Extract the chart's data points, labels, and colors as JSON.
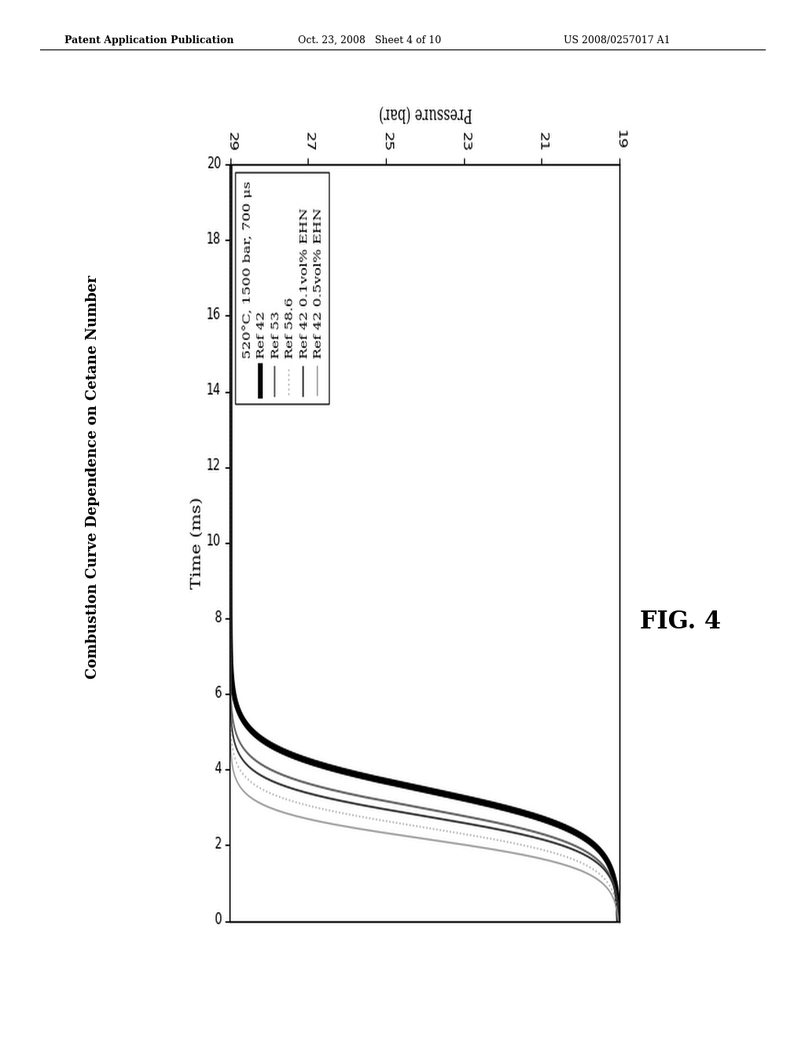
{
  "header_left": "Patent Application Publication",
  "header_center": "Oct. 23, 2008   Sheet 4 of 10",
  "header_right": "US 2008/0257017 A1",
  "rotated_title": "Combustion Curve Dependence on Cetane Number",
  "fig_label": "FIG. 4",
  "legend_condition": "520°C, 1500 bar, 700 μs",
  "curves": [
    {
      "label": "Ref 42",
      "t_mid": 3.5,
      "slope": 0.55,
      "color": "#000000",
      "lw": 3.8,
      "ls": "solid"
    },
    {
      "label": "Ref 53",
      "t_mid": 3.0,
      "slope": 0.48,
      "color": "#666666",
      "lw": 1.3,
      "ls": "solid"
    },
    {
      "label": "Ref 58.6",
      "t_mid": 2.5,
      "slope": 0.42,
      "color": "#aaaaaa",
      "lw": 1.0,
      "ls": "dotted"
    },
    {
      "label": "Ref 42 0.1vol% EHN",
      "t_mid": 2.8,
      "slope": 0.44,
      "color": "#333333",
      "lw": 1.2,
      "ls": "solid"
    },
    {
      "label": "Ref 42 0.5vol% EHN",
      "t_mid": 2.2,
      "slope": 0.38,
      "color": "#999999",
      "lw": 1.0,
      "ls": "solid"
    }
  ],
  "pressure_label": "Pressure (bar)",
  "time_label": "Time (ms)",
  "p_min": 19,
  "p_max": 29,
  "t_min": 0,
  "t_max": 20,
  "p_ticks": [
    19,
    21,
    23,
    25,
    27,
    29
  ],
  "t_ticks": [
    0,
    2,
    4,
    6,
    8,
    10,
    12,
    14,
    16,
    18,
    20
  ]
}
